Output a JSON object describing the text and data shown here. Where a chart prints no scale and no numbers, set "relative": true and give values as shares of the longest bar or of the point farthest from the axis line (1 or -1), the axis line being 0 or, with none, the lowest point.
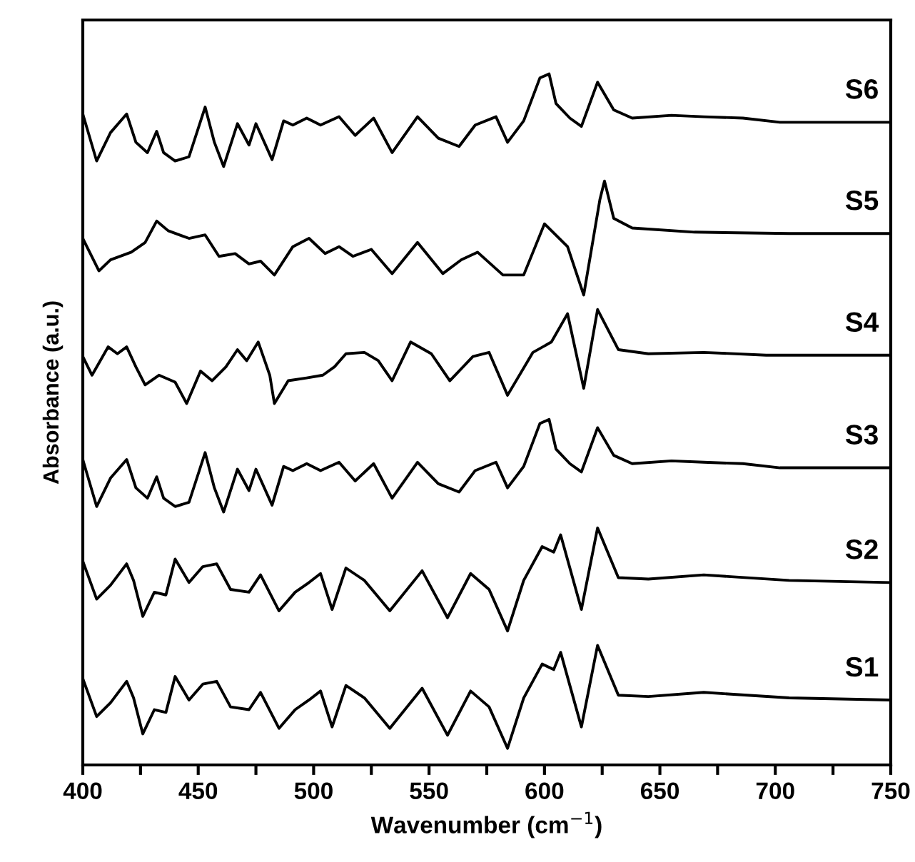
{
  "chart_data": {
    "type": "line",
    "relative": true,
    "xlabel": "Wavenumber (cm$^{−1}$)",
    "ylabel": "Absorbance (a.u.)",
    "xlim": [
      400,
      750
    ],
    "xticks": [
      400,
      {
        "value": 425,
        "label": null
      },
      450,
      {
        "value": 475,
        "label": null
      },
      500,
      {
        "value": 525,
        "label": null
      },
      550,
      {
        "value": 575,
        "label": null
      },
      600,
      {
        "value": 625,
        "label": null
      },
      650,
      {
        "value": 675,
        "label": null
      },
      700,
      {
        "value": 725,
        "label": null
      },
      750
    ],
    "grid": false,
    "legend": false,
    "marker": "none",
    "line_style": "solid",
    "series": [
      {
        "name": "S1",
        "color": "#000000",
        "x": [
          400,
          406,
          412,
          419,
          422,
          426,
          431,
          436,
          440,
          446,
          452,
          458,
          464,
          472,
          477,
          485,
          492,
          498,
          503,
          508,
          514,
          522,
          533,
          547,
          558,
          568,
          576,
          584,
          591,
          599,
          604,
          607,
          616,
          623,
          632,
          645,
          669,
          706,
          750
        ],
        "values": [
          0.125,
          0.07,
          0.09,
          0.121,
          0.097,
          0.045,
          0.08,
          0.076,
          0.128,
          0.094,
          0.117,
          0.121,
          0.084,
          0.08,
          0.105,
          0.053,
          0.08,
          0.094,
          0.107,
          0.055,
          0.115,
          0.097,
          0.053,
          0.111,
          0.043,
          0.107,
          0.084,
          0.024,
          0.097,
          0.146,
          0.138,
          0.163,
          0.055,
          0.173,
          0.101,
          0.099,
          0.105,
          0.097,
          0.094
        ]
      },
      {
        "name": "S2",
        "color": "#000000",
        "x": [
          400,
          406,
          412,
          419,
          422,
          426,
          431,
          436,
          440,
          446,
          452,
          458,
          464,
          472,
          477,
          485,
          492,
          498,
          503,
          508,
          514,
          522,
          533,
          547,
          558,
          568,
          576,
          584,
          591,
          599,
          604,
          607,
          616,
          623,
          632,
          645,
          669,
          706,
          750
        ],
        "values": [
          0.295,
          0.24,
          0.26,
          0.291,
          0.267,
          0.215,
          0.25,
          0.246,
          0.298,
          0.264,
          0.287,
          0.291,
          0.254,
          0.25,
          0.275,
          0.223,
          0.25,
          0.264,
          0.277,
          0.225,
          0.285,
          0.267,
          0.223,
          0.281,
          0.213,
          0.277,
          0.254,
          0.194,
          0.267,
          0.316,
          0.308,
          0.333,
          0.225,
          0.343,
          0.271,
          0.269,
          0.275,
          0.267,
          0.264
        ]
      },
      {
        "name": "S3",
        "color": "#000000",
        "x": [
          400,
          406,
          412,
          419,
          423,
          428,
          432,
          435,
          440,
          446,
          453,
          457,
          461,
          467,
          472,
          475,
          482,
          487,
          491,
          497,
          503,
          511,
          518,
          526,
          534,
          545,
          554,
          563,
          570,
          579,
          584,
          591,
          598,
          602,
          605,
          611,
          616,
          623,
          630,
          638,
          655,
          669,
          686,
          702,
          750
        ],
        "values": [
          0.442,
          0.374,
          0.415,
          0.442,
          0.401,
          0.386,
          0.417,
          0.386,
          0.374,
          0.38,
          0.452,
          0.401,
          0.366,
          0.428,
          0.397,
          0.428,
          0.376,
          0.432,
          0.426,
          0.436,
          0.426,
          0.438,
          0.411,
          0.436,
          0.386,
          0.438,
          0.407,
          0.395,
          0.426,
          0.438,
          0.401,
          0.432,
          0.494,
          0.5,
          0.457,
          0.436,
          0.424,
          0.488,
          0.448,
          0.436,
          0.44,
          0.438,
          0.436,
          0.43,
          0.43
        ]
      },
      {
        "name": "S4",
        "color": "#000000",
        "x": [
          400,
          404,
          411,
          415,
          419,
          423,
          427,
          433,
          440,
          445,
          451,
          456,
          462,
          467,
          471,
          476,
          481,
          483,
          489,
          497,
          504,
          509,
          514,
          522,
          528,
          534,
          542,
          551,
          559,
          569,
          576,
          584,
          595,
          603,
          610,
          617,
          623,
          632,
          645,
          669,
          696,
          750
        ],
        "values": [
          0.591,
          0.564,
          0.605,
          0.595,
          0.605,
          0.576,
          0.55,
          0.564,
          0.554,
          0.523,
          0.57,
          0.556,
          0.576,
          0.601,
          0.585,
          0.612,
          0.564,
          0.523,
          0.556,
          0.56,
          0.564,
          0.576,
          0.595,
          0.597,
          0.585,
          0.556,
          0.612,
          0.595,
          0.556,
          0.591,
          0.597,
          0.535,
          0.597,
          0.612,
          0.653,
          0.545,
          0.659,
          0.601,
          0.595,
          0.597,
          0.593,
          0.593
        ]
      },
      {
        "name": "S5",
        "color": "#000000",
        "x": [
          400,
          407,
          412,
          421,
          427,
          432,
          437,
          446,
          453,
          459,
          466,
          472,
          477,
          483,
          491,
          498,
          505,
          511,
          517,
          525,
          534,
          545,
          556,
          564,
          571,
          582,
          591,
          600,
          610,
          617,
          624,
          626,
          630,
          638,
          665,
          706,
          750
        ],
        "values": [
          0.762,
          0.715,
          0.731,
          0.742,
          0.756,
          0.787,
          0.773,
          0.762,
          0.767,
          0.736,
          0.74,
          0.725,
          0.729,
          0.709,
          0.75,
          0.762,
          0.74,
          0.75,
          0.736,
          0.746,
          0.711,
          0.756,
          0.711,
          0.731,
          0.742,
          0.709,
          0.709,
          0.783,
          0.75,
          0.68,
          0.818,
          0.845,
          0.791,
          0.777,
          0.771,
          0.769,
          0.769
        ]
      },
      {
        "name": "S6",
        "color": "#000000",
        "x": [
          400,
          406,
          412,
          419,
          423,
          428,
          432,
          435,
          440,
          446,
          453,
          457,
          461,
          467,
          472,
          475,
          482,
          487,
          491,
          497,
          503,
          511,
          518,
          526,
          534,
          545,
          554,
          563,
          570,
          579,
          584,
          591,
          598,
          602,
          605,
          611,
          616,
          623,
          630,
          638,
          655,
          669,
          686,
          702,
          750
        ],
        "values": [
          0.942,
          0.874,
          0.915,
          0.942,
          0.901,
          0.886,
          0.917,
          0.886,
          0.874,
          0.88,
          0.952,
          0.901,
          0.866,
          0.928,
          0.897,
          0.928,
          0.876,
          0.932,
          0.926,
          0.936,
          0.926,
          0.938,
          0.911,
          0.936,
          0.886,
          0.938,
          0.907,
          0.895,
          0.926,
          0.938,
          0.901,
          0.932,
          0.994,
          1.0,
          0.957,
          0.936,
          0.924,
          0.988,
          0.948,
          0.936,
          0.94,
          0.938,
          0.936,
          0.93,
          0.93
        ]
      }
    ]
  }
}
